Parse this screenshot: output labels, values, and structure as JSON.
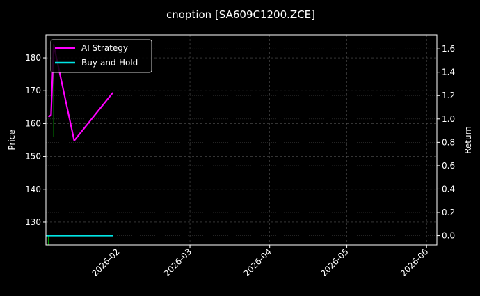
{
  "chart_data": {
    "type": "line",
    "title": "cnoption [SA609C1200.ZCE]",
    "ylabel": "Price",
    "y2label": "Return",
    "xlim": [
      "2026-01-04",
      "2026-06-05"
    ],
    "ylim": [
      123,
      187
    ],
    "y2lim": [
      -0.08,
      1.72
    ],
    "xticks": [
      "2026-02",
      "2026-03",
      "2026-04",
      "2026-05",
      "2026-06"
    ],
    "xtick_dates": [
      "2026-02-01",
      "2026-03-01",
      "2026-04-01",
      "2026-05-01",
      "2026-06-01"
    ],
    "yticks": [
      130,
      140,
      150,
      160,
      170,
      180
    ],
    "y2ticks": [
      "0.0",
      "0.2",
      "0.4",
      "0.6",
      "0.8",
      "1.0",
      "1.2",
      "1.4",
      "1.6"
    ],
    "grid": true,
    "legend": "top-left",
    "background": "#000000",
    "series": [
      {
        "name": "AI Strategy",
        "axis": "left",
        "color": "#ff00ff",
        "x": [
          "2026-01-05",
          "2026-01-06",
          "2026-01-07",
          "2026-01-15",
          "2026-01-30"
        ],
        "values": [
          162,
          162.6,
          184,
          154.8,
          169.4
        ]
      },
      {
        "name": "Buy-and-Hold",
        "axis": "right",
        "color": "#00e5e5",
        "x": [
          "2026-01-04",
          "2026-01-30"
        ],
        "values": [
          0.0,
          0.0
        ]
      }
    ],
    "candles": [
      {
        "x": "2026-01-07",
        "low": 156,
        "high": 182,
        "color": "#00a000"
      },
      {
        "x": "2026-01-05",
        "low": 123,
        "high": 126,
        "color": "#00c000"
      }
    ]
  }
}
